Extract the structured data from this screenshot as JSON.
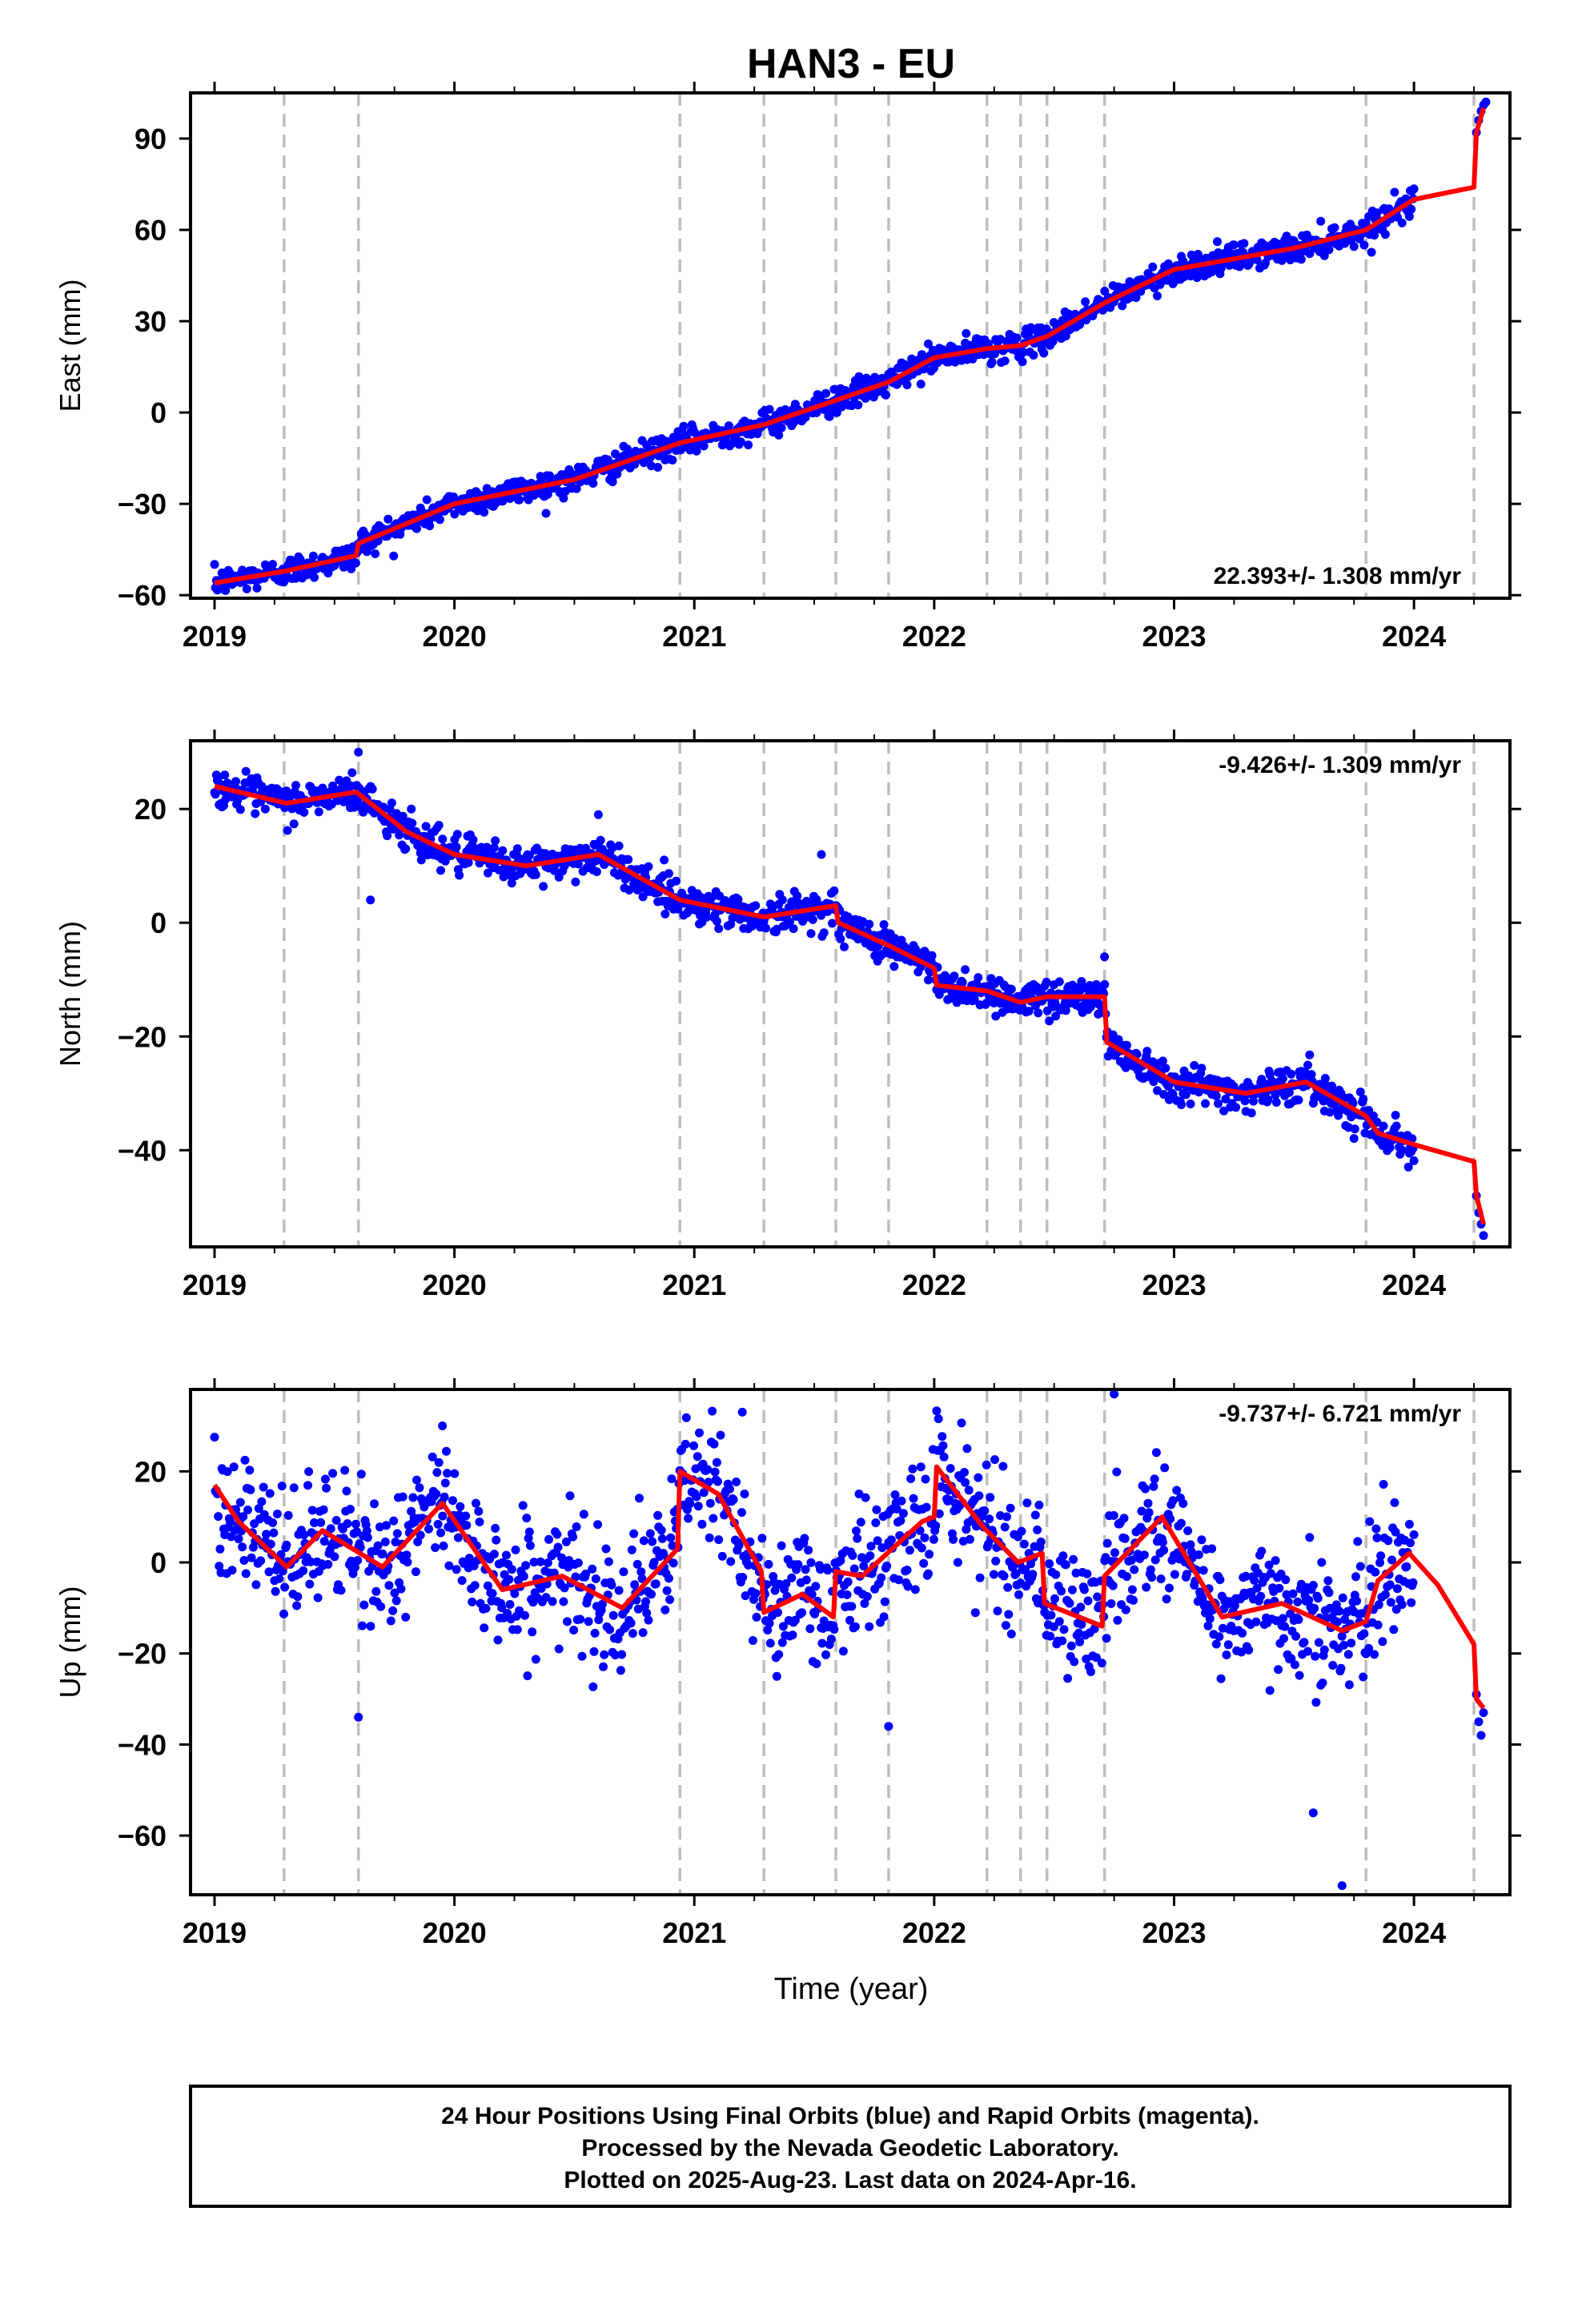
{
  "page": {
    "title": "HAN3 - EU",
    "x_axis_label": "Time (year)",
    "footer_lines": [
      "24 Hour Positions Using Final Orbits (blue) and Rapid Orbits (magenta).",
      "Processed by the Nevada Geodetic Laboratory.",
      "Plotted on 2025-Aug-23. Last data on 2024-Apr-16."
    ]
  },
  "colors": {
    "points": "#0000ff",
    "model": "#ff0000",
    "steps": "#bdbdbd",
    "frame": "#000000"
  },
  "chart_data": [
    {
      "type": "scatter",
      "ylabel": "East (mm)",
      "xlim": [
        2018.9,
        2024.4
      ],
      "ylim": [
        -61,
        105
      ],
      "xticks": [
        2019,
        2020,
        2021,
        2022,
        2023,
        2024
      ],
      "yticks": [
        -60,
        -30,
        0,
        30,
        60,
        90
      ],
      "ytick_labels": [
        "−60",
        "−30",
        "0",
        "30",
        "60",
        "90"
      ],
      "rate_label": "22.393+/- 1.308 mm/yr",
      "rate_position": "bottom-right",
      "step_epochs": [
        2019.29,
        2019.6,
        2020.94,
        2021.29,
        2021.59,
        2021.81,
        2022.22,
        2022.36,
        2022.47,
        2022.71,
        2023.8,
        2024.25
      ],
      "model": {
        "x": [
          2019.0,
          2019.3,
          2019.59,
          2019.6,
          2020.0,
          2020.5,
          2020.94,
          2021.29,
          2021.59,
          2021.81,
          2022.0,
          2022.22,
          2022.36,
          2022.47,
          2022.71,
          2023.0,
          2023.5,
          2023.8,
          2024.0,
          2024.25,
          2024.26,
          2024.29
        ],
        "y": [
          -56,
          -52,
          -47,
          -43,
          -30,
          -22,
          -10,
          -4,
          4,
          10,
          18,
          21,
          22,
          25,
          36,
          47,
          54,
          60,
          70,
          74,
          92,
          100
        ]
      },
      "points": {
        "trend": {
          "x": [
            2019.0,
            2019.3,
            2019.59,
            2019.6,
            2020.0,
            2020.5,
            2020.94,
            2021.29,
            2021.59,
            2021.81,
            2022.0,
            2022.22,
            2022.36,
            2022.47,
            2022.71,
            2023.0,
            2023.5,
            2023.8,
            2024.0
          ],
          "y": [
            -56,
            -52,
            -47,
            -43,
            -30,
            -22,
            -10,
            -4,
            4,
            10,
            18,
            21,
            22,
            25,
            36,
            47,
            54,
            60,
            70
          ]
        },
        "x_end": 2024.0,
        "noise": 2.2,
        "outliers": [
          [
            2024.26,
            92
          ],
          [
            2024.27,
            96
          ],
          [
            2024.28,
            99
          ],
          [
            2024.29,
            101
          ],
          [
            2024.3,
            102
          ]
        ]
      }
    },
    {
      "type": "scatter",
      "ylabel": "North (mm)",
      "xlim": [
        2018.9,
        2024.4
      ],
      "ylim": [
        -57,
        32
      ],
      "xticks": [
        2019,
        2020,
        2021,
        2022,
        2023,
        2024
      ],
      "yticks": [
        -40,
        -20,
        0,
        20
      ],
      "ytick_labels": [
        "−40",
        "−20",
        "0",
        "20"
      ],
      "rate_label": "-9.426+/- 1.309 mm/yr",
      "rate_position": "top-right",
      "step_epochs": [
        2019.29,
        2019.6,
        2020.94,
        2021.29,
        2021.59,
        2021.81,
        2022.22,
        2022.36,
        2022.47,
        2022.71,
        2023.8,
        2024.25
      ],
      "model": {
        "x": [
          2019.0,
          2019.3,
          2019.59,
          2019.8,
          2020.0,
          2020.3,
          2020.6,
          2020.94,
          2021.29,
          2021.59,
          2021.6,
          2021.81,
          2022.0,
          2022.01,
          2022.22,
          2022.36,
          2022.47,
          2022.71,
          2022.72,
          2023.0,
          2023.3,
          2023.55,
          2023.8,
          2023.85,
          2024.0,
          2024.25,
          2024.26,
          2024.29
        ],
        "y": [
          24,
          21,
          23,
          16,
          12,
          10,
          12,
          4,
          1,
          3,
          0,
          -4,
          -8,
          -11,
          -12,
          -14,
          -13,
          -13,
          -21,
          -28,
          -30,
          -28,
          -34,
          -37,
          -39,
          -42,
          -48,
          -53
        ]
      },
      "points": {
        "trend": {
          "x": [
            2019.0,
            2019.3,
            2019.59,
            2019.8,
            2020.0,
            2020.3,
            2020.6,
            2020.94,
            2021.29,
            2021.59,
            2021.6,
            2021.81,
            2022.0,
            2022.01,
            2022.22,
            2022.36,
            2022.47,
            2022.71,
            2022.72,
            2023.0,
            2023.3,
            2023.55,
            2023.8,
            2023.85,
            2024.0
          ],
          "y": [
            24,
            21,
            23,
            16,
            12,
            10,
            12,
            4,
            1,
            3,
            0,
            -4,
            -8,
            -11,
            -12,
            -14,
            -13,
            -13,
            -21,
            -28,
            -30,
            -28,
            -34,
            -37,
            -39
          ]
        },
        "x_end": 2024.0,
        "noise": 1.6,
        "outliers": [
          [
            2019.65,
            4
          ],
          [
            2019.6,
            30
          ],
          [
            2019.82,
            20
          ],
          [
            2021.53,
            12
          ],
          [
            2020.6,
            19
          ],
          [
            2022.71,
            -6
          ],
          [
            2024.26,
            -48
          ],
          [
            2024.27,
            -51
          ],
          [
            2024.28,
            -53
          ],
          [
            2024.29,
            -55
          ]
        ]
      }
    },
    {
      "type": "scatter",
      "ylabel": "Up (mm)",
      "xlim": [
        2018.9,
        2024.4
      ],
      "ylim": [
        -73,
        38
      ],
      "xticks": [
        2019,
        2020,
        2021,
        2022,
        2023,
        2024
      ],
      "yticks": [
        -60,
        -40,
        -20,
        0,
        20
      ],
      "ytick_labels": [
        "−60",
        "−40",
        "−20",
        "0",
        "20"
      ],
      "rate_label": "-9.737+/- 6.721 mm/yr",
      "rate_position": "top-right",
      "step_epochs": [
        2019.29,
        2019.6,
        2020.94,
        2021.29,
        2021.59,
        2021.81,
        2022.22,
        2022.36,
        2022.47,
        2022.71,
        2023.8,
        2024.25
      ],
      "model": {
        "x": [
          2019.0,
          2019.1,
          2019.3,
          2019.45,
          2019.7,
          2019.95,
          2020.2,
          2020.45,
          2020.7,
          2020.93,
          2020.94,
          2021.1,
          2021.28,
          2021.29,
          2021.45,
          2021.58,
          2021.59,
          2021.7,
          2021.95,
          2022.0,
          2022.01,
          2022.2,
          2022.35,
          2022.45,
          2022.46,
          2022.7,
          2022.71,
          2022.95,
          2023.2,
          2023.45,
          2023.7,
          2023.8,
          2023.85,
          2023.98,
          2024.1,
          2024.25,
          2024.26,
          2024.29
        ],
        "y": [
          17,
          9,
          -1,
          7,
          -1,
          13,
          -6,
          -3,
          -10,
          3,
          20,
          15,
          -2,
          -11,
          -7,
          -12,
          -2,
          -3,
          9,
          10,
          21,
          8,
          0,
          2,
          -9,
          -14,
          -3,
          10,
          -12,
          -9,
          -15,
          -13,
          -4,
          2,
          -5,
          -18,
          -30,
          -32
        ]
      },
      "points": {
        "trend": {
          "x": [
            2019.0,
            2019.1,
            2019.3,
            2019.45,
            2019.7,
            2019.95,
            2020.2,
            2020.45,
            2020.7,
            2020.93,
            2020.94,
            2021.1,
            2021.28,
            2021.29,
            2021.45,
            2021.58,
            2021.59,
            2021.7,
            2021.95,
            2022.0,
            2022.01,
            2022.2,
            2022.35,
            2022.45,
            2022.46,
            2022.7,
            2022.71,
            2022.95,
            2023.2,
            2023.45,
            2023.7,
            2023.8,
            2023.85,
            2023.98
          ],
          "y": [
            17,
            9,
            -1,
            7,
            -1,
            13,
            -6,
            -3,
            -10,
            3,
            20,
            15,
            -2,
            -11,
            -7,
            -12,
            -2,
            -3,
            9,
            10,
            21,
            8,
            0,
            2,
            -9,
            -14,
            -3,
            10,
            -12,
            -9,
            -15,
            -13,
            -4,
            2
          ]
        },
        "x_end": 2024.0,
        "noise": 7.0,
        "outliers": [
          [
            2023.58,
            -55
          ],
          [
            2023.7,
            -71
          ],
          [
            2022.75,
            37
          ],
          [
            2021.2,
            33
          ],
          [
            2019.6,
            -34
          ],
          [
            2021.81,
            -36
          ],
          [
            2019.95,
            30
          ],
          [
            2024.26,
            -29
          ],
          [
            2024.27,
            -35
          ],
          [
            2024.28,
            -38
          ],
          [
            2024.29,
            -33
          ]
        ]
      }
    }
  ]
}
